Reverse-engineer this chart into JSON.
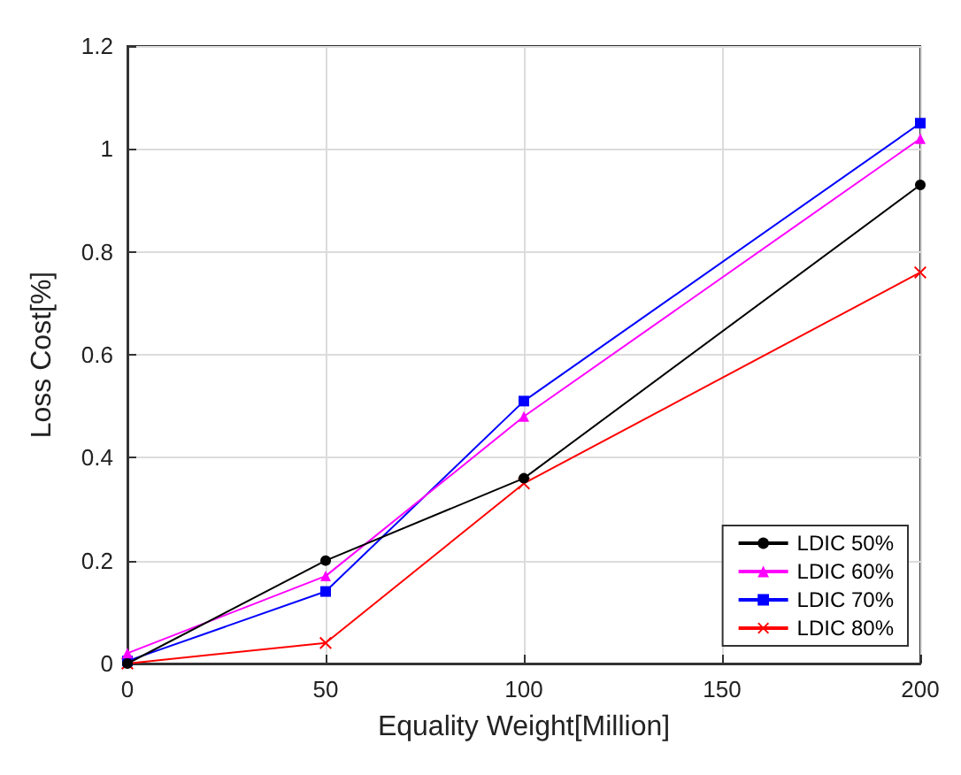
{
  "chart_data": {
    "type": "line",
    "xlabel": "Equality Weight[Million]",
    "ylabel": "Loss Cost[%]",
    "x": [
      0,
      50,
      100,
      200
    ],
    "series": [
      {
        "name": "LDIC 50%",
        "color": "#000000",
        "marker": "circle",
        "values": [
          0,
          0.2,
          0.36,
          0.93
        ]
      },
      {
        "name": "LDIC 60%",
        "color": "#ff00ff",
        "marker": "triangle",
        "values": [
          0.02,
          0.17,
          0.48,
          1.02
        ]
      },
      {
        "name": "LDIC 70%",
        "color": "#0000ff",
        "marker": "square",
        "values": [
          0.005,
          0.14,
          0.51,
          1.05
        ]
      },
      {
        "name": "LDIC 80%",
        "color": "#ff0000",
        "marker": "cross",
        "values": [
          0,
          0.04,
          0.35,
          0.76
        ]
      }
    ],
    "xlim": [
      0,
      200
    ],
    "xticks": [
      0,
      50,
      100,
      150,
      200
    ],
    "ylim": [
      0,
      1.2
    ],
    "yticks": [
      0,
      0.2,
      0.4,
      0.6,
      0.8,
      1,
      1.2
    ],
    "grid": true,
    "legend": "bottom right",
    "line_style": "solid"
  }
}
